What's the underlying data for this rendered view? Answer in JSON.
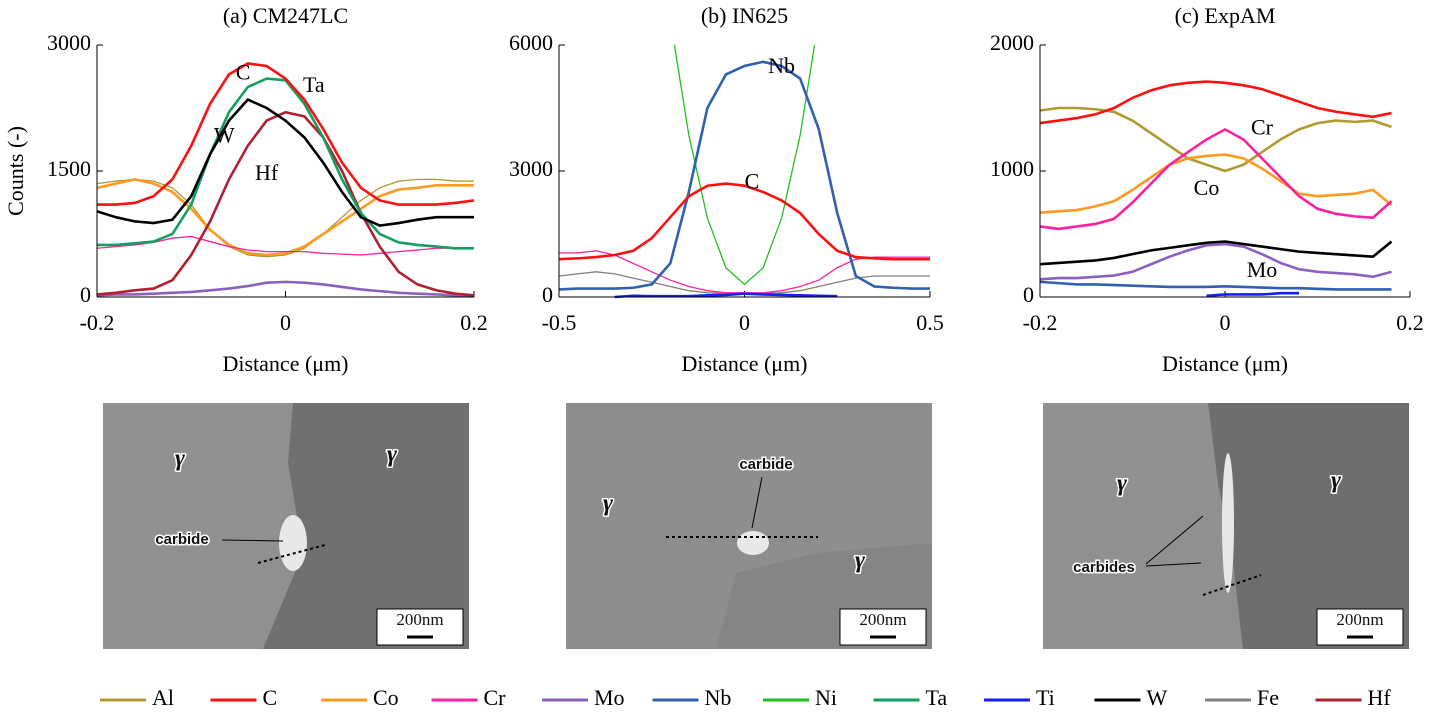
{
  "chart_data": [
    {
      "type": "line",
      "title": "(a) CM247LC",
      "xlabel": "Distance (μm)",
      "ylabel": "Counts (-)",
      "xlim": [
        -0.2,
        0.2
      ],
      "xticks": [
        -0.2,
        0,
        0.2
      ],
      "ylim": [
        0,
        3000
      ],
      "yticks": [
        0,
        1500,
        3000
      ],
      "x": [
        -0.2,
        -0.18,
        -0.16,
        -0.14,
        -0.12,
        -0.1,
        -0.08,
        -0.06,
        -0.04,
        -0.02,
        0,
        0.02,
        0.04,
        0.06,
        0.08,
        0.1,
        0.12,
        0.14,
        0.16,
        0.18,
        0.2
      ],
      "series": [
        {
          "name": "Al",
          "color": "#b09a30",
          "values": [
            1350,
            1380,
            1400,
            1380,
            1300,
            1100,
            800,
            600,
            500,
            480,
            500,
            580,
            750,
            950,
            1150,
            1300,
            1380,
            1400,
            1400,
            1380,
            1380
          ]
        },
        {
          "name": "Co",
          "color": "#ff9a20",
          "values": [
            1300,
            1350,
            1400,
            1350,
            1250,
            1050,
            800,
            620,
            520,
            500,
            520,
            600,
            750,
            900,
            1050,
            1200,
            1280,
            1300,
            1330,
            1330,
            1330
          ]
        },
        {
          "name": "Cr",
          "color": "#ff20a0",
          "values": [
            580,
            600,
            620,
            650,
            700,
            720,
            660,
            600,
            560,
            540,
            540,
            540,
            520,
            510,
            500,
            520,
            540,
            560,
            580,
            580,
            580
          ]
        },
        {
          "name": "Mo",
          "color": "#8c60c0",
          "values": [
            20,
            30,
            30,
            40,
            50,
            60,
            80,
            100,
            130,
            170,
            180,
            170,
            150,
            120,
            90,
            70,
            50,
            40,
            30,
            20,
            20
          ]
        },
        {
          "name": "Hf",
          "color": "#b02030",
          "values": [
            30,
            50,
            80,
            100,
            200,
            500,
            900,
            1400,
            1800,
            2100,
            2200,
            2150,
            1900,
            1500,
            1000,
            600,
            300,
            150,
            80,
            40,
            20
          ]
        },
        {
          "name": "Ta",
          "color": "#10a060",
          "values": [
            620,
            620,
            640,
            660,
            750,
            1100,
            1700,
            2200,
            2500,
            2600,
            2580,
            2300,
            1900,
            1400,
            1000,
            750,
            650,
            620,
            600,
            580,
            580
          ]
        },
        {
          "name": "W",
          "color": "#000000",
          "values": [
            1020,
            950,
            900,
            880,
            920,
            1200,
            1700,
            2100,
            2350,
            2250,
            2100,
            1900,
            1600,
            1250,
            950,
            850,
            880,
            920,
            950,
            950,
            950
          ]
        },
        {
          "name": "C",
          "color": "#ff1010",
          "values": [
            1100,
            1100,
            1120,
            1200,
            1400,
            1800,
            2300,
            2650,
            2780,
            2750,
            2600,
            2350,
            2000,
            1600,
            1300,
            1150,
            1100,
            1100,
            1100,
            1120,
            1150
          ]
        }
      ],
      "annotations": [
        {
          "text": "C",
          "x": -0.045,
          "y": 2650
        },
        {
          "text": "Ta",
          "x": 0.03,
          "y": 2500
        },
        {
          "text": "W",
          "x": -0.065,
          "y": 1900
        },
        {
          "text": "Hf",
          "x": -0.02,
          "y": 1450
        }
      ]
    },
    {
      "type": "line",
      "title": "(b) IN625",
      "xlabel": "Distance (μm)",
      "xlim": [
        -0.5,
        0.5
      ],
      "xticks": [
        -0.5,
        0,
        0.5
      ],
      "ylim": [
        0,
        6000
      ],
      "yticks": [
        0,
        3000,
        6000
      ],
      "x": [
        -0.5,
        -0.45,
        -0.4,
        -0.35,
        -0.3,
        -0.25,
        -0.2,
        -0.15,
        -0.1,
        -0.05,
        0,
        0.05,
        0.1,
        0.15,
        0.2,
        0.25,
        0.3,
        0.35,
        0.4,
        0.45,
        0.5
      ],
      "series": [
        {
          "name": "Fe",
          "color": "#808080",
          "values": [
            500,
            550,
            600,
            550,
            450,
            350,
            250,
            150,
            100,
            80,
            80,
            80,
            100,
            150,
            250,
            350,
            450,
            500,
            500,
            500,
            500
          ]
        },
        {
          "name": "Cr",
          "color": "#ff20a0",
          "values": [
            1050,
            1050,
            1100,
            1000,
            800,
            600,
            400,
            250,
            150,
            100,
            100,
            100,
            150,
            250,
            400,
            700,
            900,
            950,
            950,
            950,
            950
          ]
        },
        {
          "name": "Ni",
          "color": "#20c020",
          "values": [
            null,
            null,
            null,
            null,
            null,
            null,
            6615,
            3852,
            1879,
            695,
            300,
            695,
            1879,
            3852,
            6615,
            null,
            null,
            null,
            null,
            null,
            null
          ]
        },
        {
          "name": "Ti",
          "color": "#1020ff",
          "values": [
            null,
            null,
            null,
            0,
            30,
            20,
            20,
            20,
            40,
            50,
            80,
            60,
            50,
            40,
            30,
            20,
            null,
            null,
            null,
            null,
            null
          ]
        },
        {
          "name": "Nb",
          "color": "#3060b0",
          "values": [
            180,
            200,
            200,
            200,
            220,
            300,
            800,
            2500,
            4500,
            5300,
            5500,
            5600,
            5500,
            5200,
            4000,
            2000,
            500,
            250,
            220,
            200,
            200
          ]
        },
        {
          "name": "C",
          "color": "#ff1010",
          "values": [
            900,
            920,
            950,
            1000,
            1100,
            1400,
            1900,
            2400,
            2650,
            2700,
            2650,
            2500,
            2300,
            2000,
            1500,
            1100,
            950,
            920,
            900,
            900,
            900
          ]
        }
      ],
      "annotations": [
        {
          "text": "Nb",
          "x": 0.1,
          "y": 5450
        },
        {
          "text": "C",
          "x": 0.02,
          "y": 2700
        }
      ]
    },
    {
      "type": "line",
      "title": "(c) ExpAM",
      "xlabel": "Distance (μm)",
      "xlim": [
        -0.2,
        0.2
      ],
      "xticks": [
        -0.2,
        0,
        0.2
      ],
      "ylim": [
        0,
        2000
      ],
      "yticks": [
        0,
        1000,
        2000
      ],
      "x": [
        -0.2,
        -0.18,
        -0.16,
        -0.14,
        -0.12,
        -0.1,
        -0.08,
        -0.06,
        -0.04,
        -0.02,
        0,
        0.02,
        0.04,
        0.06,
        0.08,
        0.1,
        0.12,
        0.14,
        0.16,
        0.18
      ],
      "series": [
        {
          "name": "Al",
          "color": "#b09a30",
          "values": [
            1480,
            1500,
            1500,
            1490,
            1470,
            1400,
            1300,
            1200,
            1100,
            1050,
            1000,
            1050,
            1150,
            1250,
            1330,
            1380,
            1400,
            1390,
            1400,
            1350
          ]
        },
        {
          "name": "Nb",
          "color": "#3060b0",
          "values": [
            120,
            110,
            100,
            100,
            95,
            90,
            85,
            80,
            80,
            80,
            85,
            80,
            75,
            70,
            70,
            65,
            60,
            60,
            60,
            60
          ]
        },
        {
          "name": "Ti",
          "color": "#1020ff",
          "values": [
            null,
            null,
            null,
            10,
            null,
            null,
            null,
            null,
            null,
            10,
            20,
            20,
            20,
            30,
            30,
            null,
            null,
            null,
            null,
            null
          ]
        },
        {
          "name": "W",
          "color": "#000000",
          "values": [
            260,
            270,
            280,
            290,
            310,
            340,
            370,
            390,
            410,
            430,
            440,
            420,
            400,
            380,
            360,
            350,
            340,
            330,
            320,
            440
          ]
        },
        {
          "name": "Mo",
          "color": "#8c60c0",
          "values": [
            140,
            150,
            150,
            160,
            170,
            200,
            260,
            320,
            370,
            410,
            420,
            400,
            340,
            270,
            220,
            200,
            190,
            180,
            160,
            200
          ]
        },
        {
          "name": "Co",
          "color": "#ff9a20",
          "values": [
            670,
            680,
            690,
            720,
            760,
            850,
            950,
            1050,
            1100,
            1120,
            1130,
            1100,
            1020,
            920,
            820,
            800,
            810,
            820,
            850,
            730
          ]
        },
        {
          "name": "Cr",
          "color": "#ff20a0",
          "values": [
            560,
            540,
            560,
            580,
            620,
            750,
            900,
            1050,
            1150,
            1250,
            1330,
            1250,
            1100,
            950,
            800,
            700,
            660,
            640,
            630,
            760
          ]
        },
        {
          "name": "C",
          "color": "#ff1010",
          "values": [
            1380,
            1400,
            1420,
            1450,
            1500,
            1580,
            1640,
            1680,
            1700,
            1710,
            1700,
            1680,
            1650,
            1600,
            1550,
            1500,
            1470,
            1450,
            1430,
            1460
          ]
        }
      ],
      "annotations": [
        {
          "text": "Cr",
          "x": 0.04,
          "y": 1330
        },
        {
          "text": "Co",
          "x": -0.02,
          "y": 850
        },
        {
          "text": "Mo",
          "x": 0.04,
          "y": 200
        }
      ]
    }
  ],
  "micrographs": [
    {
      "labels": [
        "γ",
        "γ",
        "carbide"
      ],
      "scale_bar": "200nm"
    },
    {
      "labels": [
        "γ",
        "γ",
        "carbide"
      ],
      "scale_bar": "200nm"
    },
    {
      "labels": [
        "γ",
        "γ",
        "carbides"
      ],
      "scale_bar": "200nm"
    }
  ],
  "legend": [
    {
      "name": "Al",
      "color": "#b09a30"
    },
    {
      "name": "C",
      "color": "#ff1010"
    },
    {
      "name": "Co",
      "color": "#ff9a20"
    },
    {
      "name": "Cr",
      "color": "#ff20a0"
    },
    {
      "name": "Mo",
      "color": "#8c60c0"
    },
    {
      "name": "Nb",
      "color": "#3060b0"
    },
    {
      "name": "Ni",
      "color": "#20c020"
    },
    {
      "name": "Ta",
      "color": "#10a060"
    },
    {
      "name": "Ti",
      "color": "#1020ff"
    },
    {
      "name": "W",
      "color": "#000000"
    },
    {
      "name": "Fe",
      "color": "#808080"
    },
    {
      "name": "Hf",
      "color": "#b02030"
    }
  ]
}
